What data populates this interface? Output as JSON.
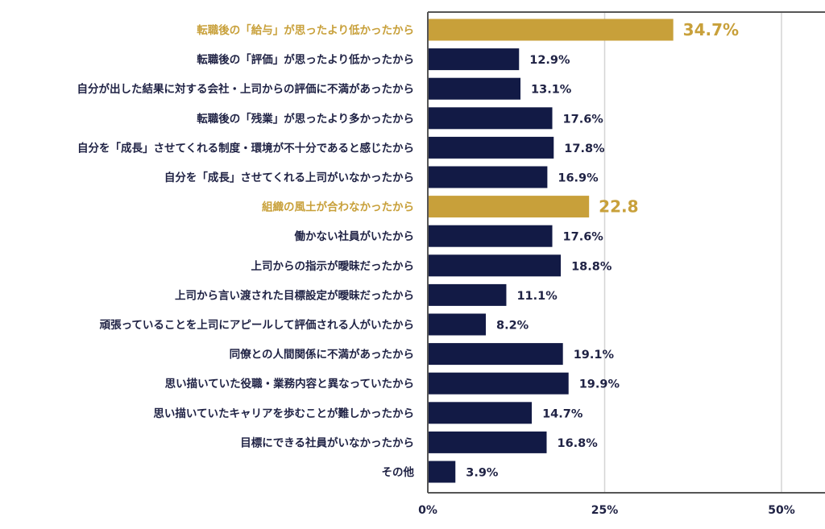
{
  "chart_data": {
    "type": "bar",
    "orientation": "horizontal",
    "categories": [
      "転職後の「給与」が思ったより低かったから",
      "転職後の「評価」が思ったより低かったから",
      "自分が出した結果に対する会社・上司からの評価に不満があったから",
      "転職後の「残業」が思ったより多かったから",
      "自分を「成長」させてくれる制度・環境が不十分であると感じたから",
      "自分を「成長」させてくれる上司がいなかったから",
      "組織の風土が合わなかったから",
      "働かない社員がいたから",
      "上司からの指示が曖昧だったから",
      "上司から言い渡された目標設定が曖昧だったから",
      "頑張っていることを上司にアピールして評価される人がいたから",
      "同僚との人間関係に不満があったから",
      "思い描いていた役職・業務内容と異なっていたから",
      "思い描いていたキャリアを歩むことが難しかったから",
      "目標にできる社員がいなかったから",
      "その他"
    ],
    "values": [
      34.7,
      12.9,
      13.1,
      17.6,
      17.8,
      16.9,
      22.8,
      17.6,
      18.8,
      11.1,
      8.2,
      19.1,
      19.9,
      14.7,
      16.8,
      3.9
    ],
    "value_labels": [
      "34.7%",
      "12.9%",
      "13.1%",
      "17.6%",
      "17.8%",
      "16.9%",
      "22.8",
      "17.6%",
      "18.8%",
      "11.1%",
      "8.2%",
      "19.1%",
      "19.9%",
      "14.7%",
      "16.8%",
      "3.9%"
    ],
    "highlighted": [
      true,
      false,
      false,
      false,
      false,
      false,
      true,
      false,
      false,
      false,
      false,
      false,
      false,
      false,
      false,
      false
    ],
    "x_ticks": [
      0,
      25,
      50
    ],
    "x_tick_labels": [
      "0%",
      "25%",
      "50%"
    ],
    "xlim": [
      0,
      56
    ],
    "grid": true,
    "title": "",
    "xlabel": "",
    "ylabel": "",
    "colors": {
      "default": "#121a45",
      "highlight": "#c8a03a",
      "grid": "#d4d4d4",
      "axis": "#555555"
    }
  }
}
